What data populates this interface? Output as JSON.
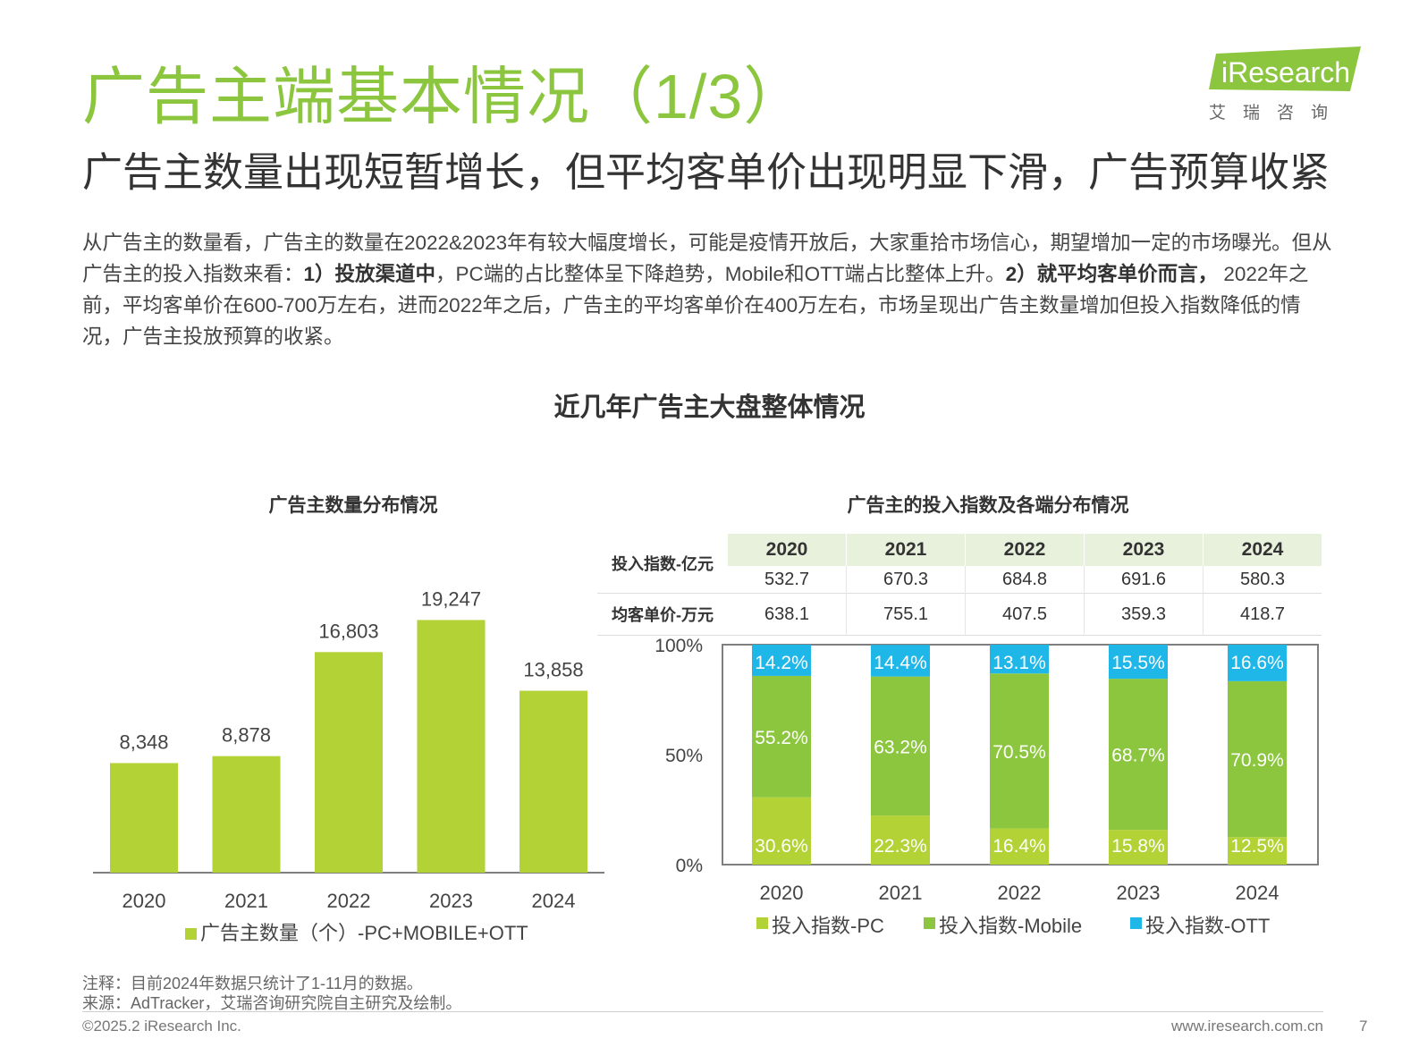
{
  "header": {
    "title": "广告主端基本情况（1/3）",
    "subtitle": "广告主数量出现短暂增长，但平均客单价出现明显下滑，广告预算收紧",
    "logo_text": "iResearch",
    "logo_sub": "艾　瑞　咨　询"
  },
  "intro": {
    "p1": "从广告主的数量看，广告主的数量在2022&2023年有较大幅度增长，可能是疫情开放后，大家重拾市场信心，期望增加一定的市场曝光。但从广告主的投入指数来看：",
    "b1": "1）投放渠道中",
    "p2": "，PC端的占比整体呈下降趋势，Mobile和OTT端占比整体上升。",
    "b2": "2）就平均客单价而言，",
    "p3": " 2022年之前，平均客单价在600-700万左右，进而2022年之后，广告主的平均客单价在400万左右，市场呈现出广告主数量增加但投入指数降低的情况，广告主投放预算的收紧。"
  },
  "section_title": "近几年广告主大盘整体情况",
  "colors": {
    "brand_green": "#8cc63f",
    "bar_green": "#b2d235",
    "pc": "#b2d235",
    "mobile": "#8cc63f",
    "ott": "#1fb6e8",
    "table_header_bg": "#e7f1dc"
  },
  "table": {
    "row1_label": "投入指数-亿元",
    "row2_label": "均客单价-万元",
    "years": [
      "2020",
      "2021",
      "2022",
      "2023",
      "2024"
    ],
    "invest": [
      "532.7",
      "670.3",
      "684.8",
      "691.6",
      "580.3"
    ],
    "avg_price": [
      "638.1",
      "755.1",
      "407.5",
      "359.3",
      "418.7"
    ]
  },
  "chart_data": [
    {
      "type": "bar",
      "title": "广告主数量分布情况",
      "categories": [
        "2020",
        "2021",
        "2022",
        "2023",
        "2024"
      ],
      "series": [
        {
          "name": "广告主数量（个）-PC+MOBILE+OTT",
          "values": [
            8348,
            8878,
            16803,
            19247,
            13858
          ]
        }
      ],
      "data_labels": [
        "8,348",
        "8,878",
        "16,803",
        "19,247",
        "13,858"
      ],
      "ylim": [
        0,
        23500
      ],
      "grid": false,
      "legend": "bottom"
    },
    {
      "type": "bar",
      "stacked": true,
      "title": "广告主的投入指数及各端分布情况",
      "categories": [
        "2020",
        "2021",
        "2022",
        "2023",
        "2024"
      ],
      "series": [
        {
          "name": "投入指数-PC",
          "values": [
            30.6,
            22.3,
            16.4,
            15.8,
            12.5
          ]
        },
        {
          "name": "投入指数-Mobile",
          "values": [
            55.2,
            63.2,
            70.5,
            68.7,
            70.9
          ]
        },
        {
          "name": "投入指数-OTT",
          "values": [
            14.2,
            14.4,
            13.1,
            15.5,
            16.6
          ]
        }
      ],
      "yticks": [
        "0%",
        "50%",
        "100%"
      ],
      "ylim": [
        0,
        100
      ],
      "legend": "bottom"
    }
  ],
  "footer": {
    "note": "注释：目前2024年数据只统计了1-11月的数据。",
    "source": "来源：AdTracker，艾瑞咨询研究院自主研究及绘制。",
    "copyright": "©2025.2 iResearch Inc.",
    "website": "www.iresearch.com.cn",
    "page": "7"
  }
}
